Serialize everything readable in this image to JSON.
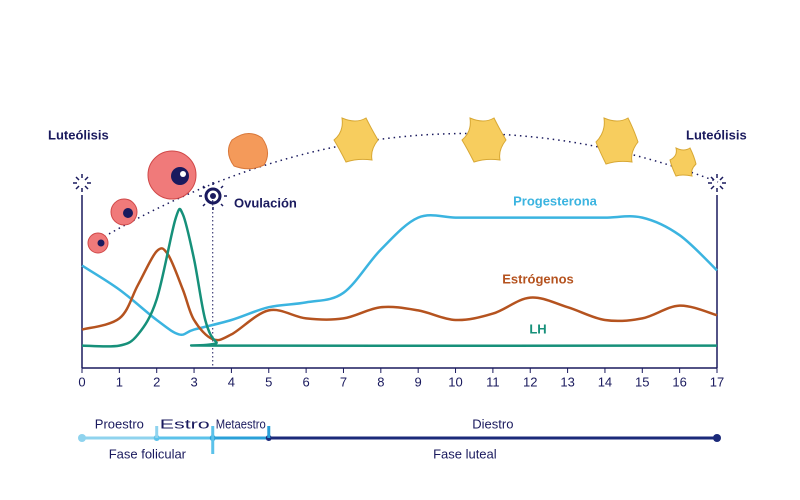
{
  "chart_data": {
    "type": "line",
    "xlim": [
      0,
      17
    ],
    "xticks": [
      0,
      1,
      2,
      3,
      4,
      5,
      6,
      7,
      8,
      9,
      10,
      11,
      12,
      13,
      14,
      15,
      16,
      17
    ],
    "ylim": [
      0,
      100
    ],
    "series": [
      {
        "name": "Progesterona",
        "color": "#3bb4e0",
        "x": [
          0,
          1,
          2,
          2.6,
          3,
          4,
          5,
          6,
          7,
          8,
          9,
          10,
          11,
          12,
          13,
          14,
          15,
          16,
          17
        ],
        "values": [
          64,
          49,
          30,
          21,
          24,
          30,
          38,
          41,
          47,
          74,
          94,
          94,
          94,
          94,
          94,
          94,
          94,
          83,
          61
        ]
      },
      {
        "name": "Estrógenos",
        "color": "#b5531f",
        "x": [
          0,
          1,
          1.5,
          2,
          2.3,
          2.7,
          3,
          3.5,
          4,
          5,
          6,
          7,
          8,
          9,
          10,
          11,
          12,
          13,
          14,
          15,
          16,
          17
        ],
        "values": [
          24,
          31,
          52,
          73,
          71,
          49,
          30,
          18,
          21,
          36,
          31,
          31,
          38,
          36,
          30,
          34,
          44,
          38,
          30,
          31,
          39,
          33
        ]
      },
      {
        "name": "LH",
        "color": "#16907a",
        "x": [
          0,
          1,
          1.5,
          2,
          2.5,
          2.7,
          3,
          3.3,
          3.6,
          4,
          17
        ],
        "values": [
          14,
          14,
          21,
          43,
          93,
          96,
          68,
          30,
          16,
          14,
          14
        ]
      }
    ],
    "annotations": {
      "left": "Luteólisis",
      "right": "Luteólisis",
      "ovulation": "Ovulación",
      "ovulation_x": 3.5
    },
    "phases": [
      {
        "label": "Proestro",
        "start": 0,
        "end": 2,
        "color": "#8fd3ee"
      },
      {
        "label": "Estro",
        "start": 2,
        "end": 3.5,
        "color": "#5bc2ea"
      },
      {
        "label": "Metaestro",
        "start": 3.5,
        "end": 5,
        "color": "#2aa0d8"
      },
      {
        "label": "Diestro",
        "start": 5,
        "end": 17,
        "color": "#1b2a7a"
      }
    ],
    "stages": [
      {
        "label": "Fase folicular",
        "start": 0,
        "end": 3.5
      },
      {
        "label": "Fase luteal",
        "start": 3.5,
        "end": 17
      }
    ]
  }
}
